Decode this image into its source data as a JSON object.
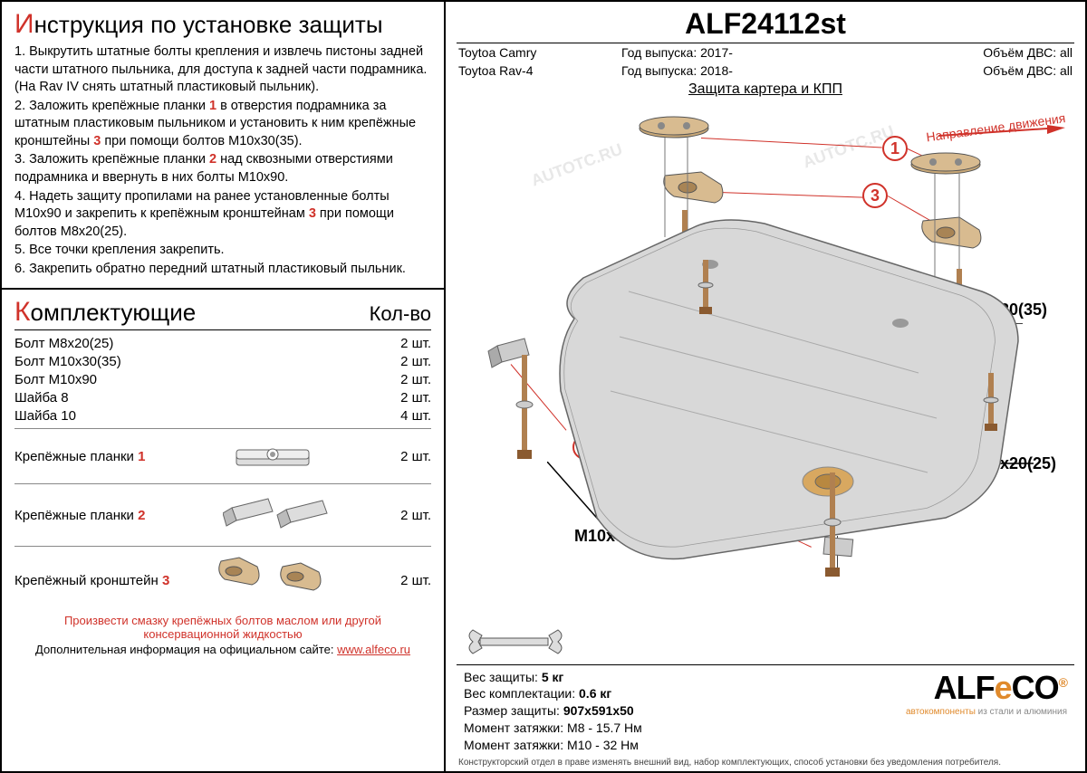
{
  "colors": {
    "accent": "#d0322a",
    "orange": "#e08a2c",
    "grey": "#b8b8b8",
    "bracket": "#c9a877"
  },
  "instructions": {
    "title_cap": "И",
    "title_rest": "нструкция по установке защиты",
    "steps": [
      "1.   Выкрутить штатные болты крепления и извлечь пистоны задней части штатного пыльника, для доступа к задней части подрамника. (На Rav IV снять штатный пластиковый пыльник).",
      "2.   Заложить крепёжные планки <span class='red'>1</span> в отверстия подрамника за штатным пластиковым пыльником и установить к ним крепёжные кронштейны <span class='red'>3</span> при помощи болтов М10х30(35).",
      "3.   Заложить крепёжные планки <span class='red'>2</span> над сквозными отверстиями подрамника и ввернуть в них болты М10х90.",
      "4.   Надеть защиту пропилами на ранее установленные болты М10х90 и закрепить к крепёжным кронштейнам <span class='red'>3</span> при помощи болтов М8х20(25).",
      "5.   Все точки крепления закрепить.",
      "6.   Закрепить обратно передний штатный пластиковый пыльник."
    ]
  },
  "parts": {
    "title_cap": "К",
    "title_rest": "омплектующие",
    "qty_header": "Кол-во",
    "items_simple": [
      {
        "name": "Болт М8х20(25)",
        "qty": "2 шт."
      },
      {
        "name": "Болт М10х30(35)",
        "qty": "2 шт."
      },
      {
        "name": "Болт М10х90",
        "qty": "2 шт."
      },
      {
        "name": "Шайба 8",
        "qty": "2 шт."
      },
      {
        "name": "Шайба 10",
        "qty": "4 шт."
      }
    ],
    "items_illustrated": [
      {
        "name": "Крепёжные планки",
        "num": "1",
        "qty": "2 шт."
      },
      {
        "name": "Крепёжные планки",
        "num": "2",
        "qty": "2 шт."
      },
      {
        "name": "Крепёжный кронштейн",
        "num": "3",
        "qty": "2 шт."
      }
    ]
  },
  "footer_left": {
    "note": "Произвести смазку крепёжных болтов маслом или другой консервационной жидкостью",
    "info_prefix": "Дополнительная информация на официальном сайте:",
    "url": "www.alfeco.ru"
  },
  "right": {
    "product_code": "ALF24112st",
    "vehicles": [
      {
        "model": "Toytoa Camry",
        "year_label": "Год выпуска:",
        "year": "2017-",
        "engine_label": "Объём ДВС:",
        "engine": "all"
      },
      {
        "model": "Toytoa Rav-4",
        "year_label": "Год выпуска:",
        "year": "2018-",
        "engine_label": "Объём ДВС:",
        "engine": "all"
      }
    ],
    "subtitle": "Защита картера и КПП",
    "direction_label": "Направление движения",
    "bolt_labels": {
      "a": "M10x30(35)",
      "b": "M8x20(25)",
      "c": "M10x90"
    },
    "callouts": {
      "one": "1",
      "two": "2",
      "three": "3"
    },
    "specs_lines": [
      "Вес защиты: <b>5 кг</b>",
      "Вес комплектации: <b>0.6 кг</b>",
      "Размер защиты: <b>907х591х50</b>",
      "Момент затяжки:    М8 - 15.7 Нм",
      "Момент затяжки:    М10 - 32 Нм"
    ],
    "logo": {
      "a": "ALF",
      "e": "e",
      "co": "CO",
      "reg": "®",
      "tagline_a": "автокомпоненты",
      "tagline_b": " из стали и алюминия"
    },
    "footer": "Конструкторский отдел в праве изменять внешний вид, набор комплектующих, способ установки без уведомления потребителя."
  },
  "watermark": "AUTOTC.RU"
}
